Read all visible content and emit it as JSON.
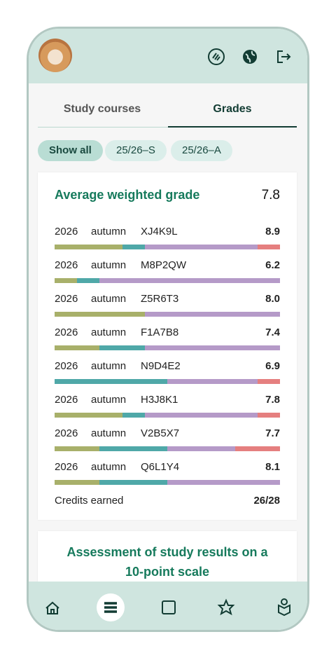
{
  "tabs": [
    "Study courses",
    "Grades"
  ],
  "filters": [
    "Show all",
    "25/26–S",
    "25/26–A"
  ],
  "card": {
    "title": "Average weighted grade",
    "average": "7.8",
    "segment_colors": [
      "#a8b06a",
      "#4fa8a8",
      "#b59ac8",
      "#e57f7f"
    ],
    "courses": [
      {
        "year": "2026",
        "term": "autumn",
        "code": "XJ4K9L",
        "grade": "8.9",
        "segments": [
          3,
          1,
          5,
          1
        ]
      },
      {
        "year": "2026",
        "term": "autumn",
        "code": "M8P2QW",
        "grade": "6.2",
        "segments": [
          1,
          1,
          8,
          0
        ]
      },
      {
        "year": "2026",
        "term": "autumn",
        "code": "Z5R6T3",
        "grade": "8.0",
        "segments": [
          4,
          0,
          6,
          0
        ]
      },
      {
        "year": "2026",
        "term": "autumn",
        "code": "F1A7B8",
        "grade": "7.4",
        "segments": [
          2,
          2,
          6,
          0
        ]
      },
      {
        "year": "2026",
        "term": "autumn",
        "code": "N9D4E2",
        "grade": "6.9",
        "segments": [
          0,
          5,
          4,
          1
        ]
      },
      {
        "year": "2026",
        "term": "autumn",
        "code": "H3J8K1",
        "grade": "7.8",
        "segments": [
          3,
          1,
          5,
          1
        ]
      },
      {
        "year": "2026",
        "term": "autumn",
        "code": "V2B5X7",
        "grade": "7.7",
        "segments": [
          2,
          3,
          3,
          2
        ]
      },
      {
        "year": "2026",
        "term": "autumn",
        "code": "Q6L1Y4",
        "grade": "8.1",
        "segments": [
          2,
          3,
          5,
          0
        ]
      }
    ],
    "credits_label": "Credits earned",
    "credits": "26/28"
  },
  "assessment": {
    "title": "Assessment of study results on a 10-point scale"
  }
}
